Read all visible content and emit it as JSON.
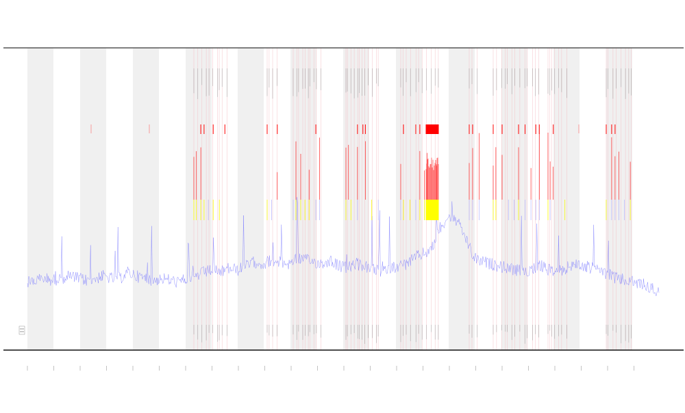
{
  "chart_data": {
    "type": "line",
    "title": "",
    "xlabel": "",
    "ylabel": "",
    "legend": {
      "placement": "bottom-left",
      "entries": []
    },
    "grid": false,
    "bands": {
      "shaded_count": 12,
      "description_colors": {
        "band": "#f0f0f0"
      }
    },
    "y_zones": [
      {
        "name": "upper",
        "color": "#ff0000"
      },
      {
        "name": "middle",
        "color": "#ffff00"
      },
      {
        "name": "lower",
        "color": "#7b7bff"
      }
    ],
    "x_ticks": [],
    "series": [
      {
        "name": "",
        "color": "#7b7bff",
        "values": [
          0.28,
          0.29,
          0.3,
          0.29,
          0.3,
          0.31,
          0.3,
          0.29,
          0.3,
          0.31,
          0.3,
          0.3,
          0.33,
          0.31,
          0.3,
          0.29,
          0.3,
          0.29,
          0.28,
          0.3,
          0.31,
          0.33,
          0.34,
          0.33,
          0.35,
          0.34,
          0.36,
          0.38,
          0.37,
          0.39,
          0.38,
          0.37,
          0.4,
          0.39,
          0.38,
          0.37,
          0.39,
          0.36,
          0.35,
          0.37,
          0.36,
          0.34,
          0.33,
          0.35,
          0.36,
          0.37,
          0.4,
          0.42,
          0.44,
          0.55,
          0.6,
          0.58,
          0.5,
          0.4,
          0.38,
          0.37,
          0.36,
          0.35,
          0.34,
          0.33,
          0.35,
          0.36,
          0.34,
          0.33,
          0.35,
          0.37,
          0.36,
          0.35,
          0.34,
          0.32,
          0.3,
          0.29,
          0.28,
          0.27,
          0.25,
          0.24
        ]
      }
    ]
  },
  "page": {
    "title": "",
    "x_axis_label": ""
  }
}
